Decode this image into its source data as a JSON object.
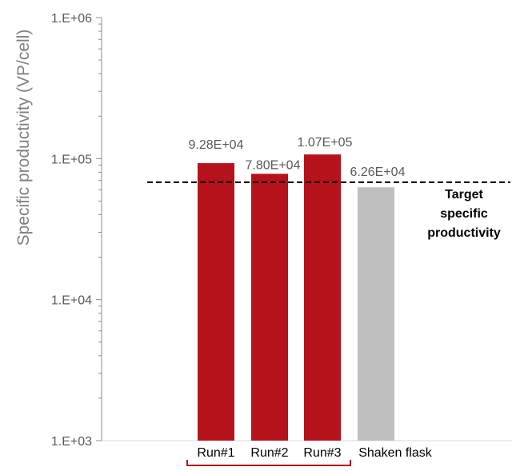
{
  "chart_data": {
    "type": "bar",
    "ylabel": "Specific productivity (VP/cell)",
    "yscale": "log",
    "ylim": [
      1000,
      1000000
    ],
    "yticks": [
      {
        "value": 1000,
        "label": "1.E+03"
      },
      {
        "value": 10000,
        "label": "1.E+04"
      },
      {
        "value": 100000,
        "label": "1.E+05"
      },
      {
        "value": 1000000,
        "label": "1.E+06"
      }
    ],
    "categories": [
      "Run#1",
      "Run#2",
      "Run#3",
      "Shaken flask"
    ],
    "values": [
      92800,
      78000,
      107000,
      62600
    ],
    "data_labels": [
      "9.28E+04",
      "7.80E+04",
      "1.07E+05",
      "6.26E+04"
    ],
    "bar_colors": [
      "#b5121b",
      "#b5121b",
      "#b5121b",
      "#bfbfbf"
    ],
    "reference_line": {
      "value": 68000,
      "label": "Target specific productivity",
      "style": "dashed",
      "color": "#000000"
    },
    "bracket_color": "#b5121b",
    "axis_color": "#8c8c8c",
    "label_color": "#595959",
    "grid": false,
    "legend": "none"
  }
}
